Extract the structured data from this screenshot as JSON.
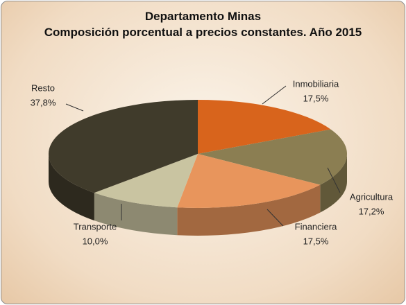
{
  "chart_data": {
    "type": "pie3d",
    "title": "Departamento Minas",
    "subtitle": "Composición porcentual a precios constantes. Año 2015",
    "categories": [
      "Inmobiliaria",
      "Agricultura",
      "Financiera",
      "Transporte",
      "Resto"
    ],
    "values": [
      17.5,
      17.2,
      17.5,
      10.0,
      37.8
    ],
    "value_labels": [
      "17,5%",
      "17,2%",
      "17,5%",
      "10,0%",
      "37,8%"
    ],
    "colors": [
      "#d8641c",
      "#8b7e52",
      "#e8955c",
      "#c9c4a1",
      "#403b2b"
    ]
  }
}
